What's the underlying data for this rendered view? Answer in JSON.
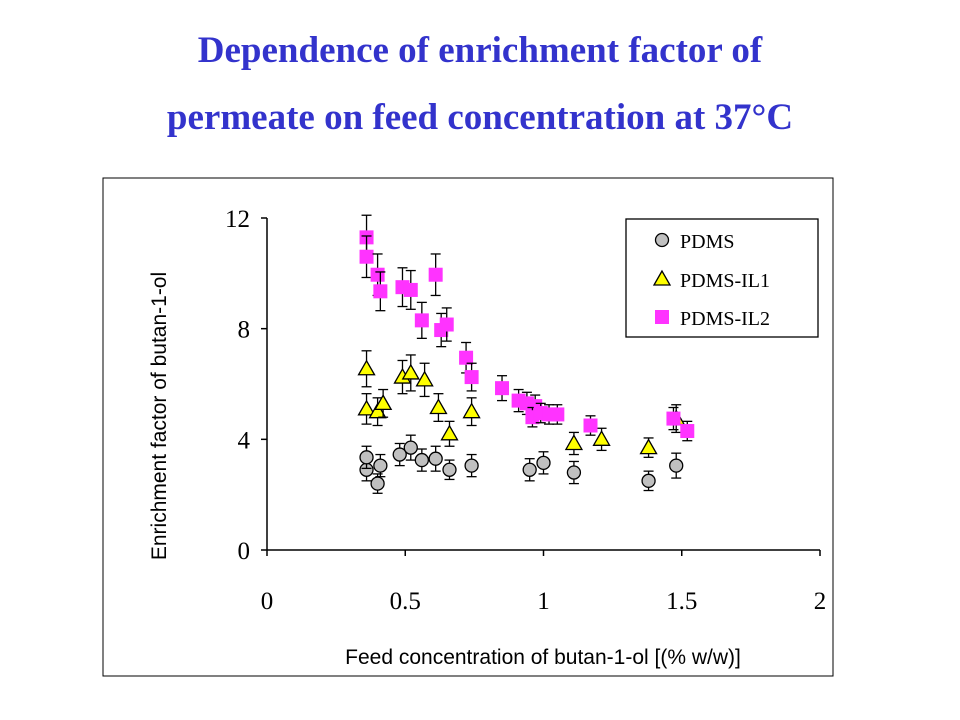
{
  "title_line1": "Dependence of enrichment factor of",
  "title_line2": "permeate on feed concentration at 37°C",
  "chart_data": {
    "type": "scatter",
    "xlabel": "Feed concentration of butan-1-ol [(% w/w)]",
    "ylabel": "Enrichment factor of butan-1-ol",
    "xlim": [
      0,
      2
    ],
    "ylim": [
      0,
      12
    ],
    "xticks": [
      "0",
      "0.5",
      "1",
      "1.5",
      "2"
    ],
    "yticks": [
      "0",
      "4",
      "8",
      "12"
    ],
    "legend_position": "top-right",
    "series": [
      {
        "name": "PDMS",
        "marker": "circle",
        "color": "#c0c0c0",
        "points": [
          {
            "x": 0.36,
            "y": 2.9,
            "err": 0.4
          },
          {
            "x": 0.36,
            "y": 3.35,
            "err": 0.4
          },
          {
            "x": 0.4,
            "y": 2.4,
            "err": 0.35
          },
          {
            "x": 0.41,
            "y": 3.05,
            "err": 0.4
          },
          {
            "x": 0.48,
            "y": 3.45,
            "err": 0.4
          },
          {
            "x": 0.52,
            "y": 3.7,
            "err": 0.45
          },
          {
            "x": 0.56,
            "y": 3.25,
            "err": 0.4
          },
          {
            "x": 0.61,
            "y": 3.3,
            "err": 0.45
          },
          {
            "x": 0.66,
            "y": 2.9,
            "err": 0.35
          },
          {
            "x": 0.74,
            "y": 3.05,
            "err": 0.4
          },
          {
            "x": 0.95,
            "y": 2.9,
            "err": 0.4
          },
          {
            "x": 1.0,
            "y": 3.15,
            "err": 0.4
          },
          {
            "x": 1.11,
            "y": 2.8,
            "err": 0.4
          },
          {
            "x": 1.38,
            "y": 2.5,
            "err": 0.35
          },
          {
            "x": 1.48,
            "y": 3.05,
            "err": 0.45
          }
        ]
      },
      {
        "name": "PDMS-IL1",
        "marker": "triangle",
        "color": "#ffff00",
        "points": [
          {
            "x": 0.36,
            "y": 6.55,
            "err": 0.65
          },
          {
            "x": 0.36,
            "y": 5.1,
            "err": 0.55
          },
          {
            "x": 0.4,
            "y": 5.0,
            "err": 0.5
          },
          {
            "x": 0.42,
            "y": 5.3,
            "err": 0.5
          },
          {
            "x": 0.49,
            "y": 6.25,
            "err": 0.6
          },
          {
            "x": 0.52,
            "y": 6.4,
            "err": 0.65
          },
          {
            "x": 0.57,
            "y": 6.15,
            "err": 0.6
          },
          {
            "x": 0.62,
            "y": 5.15,
            "err": 0.5
          },
          {
            "x": 0.66,
            "y": 4.2,
            "err": 0.45
          },
          {
            "x": 0.74,
            "y": 5.0,
            "err": 0.5
          },
          {
            "x": 1.11,
            "y": 3.85,
            "err": 0.4
          },
          {
            "x": 1.21,
            "y": 4.0,
            "err": 0.4
          },
          {
            "x": 1.38,
            "y": 3.7,
            "err": 0.35
          },
          {
            "x": 1.48,
            "y": 4.75,
            "err": 0.5
          }
        ]
      },
      {
        "name": "PDMS-IL2",
        "marker": "square",
        "color": "#ff33ff",
        "points": [
          {
            "x": 0.36,
            "y": 11.3,
            "err": 0.8
          },
          {
            "x": 0.36,
            "y": 10.6,
            "err": 0.75
          },
          {
            "x": 0.4,
            "y": 9.95,
            "err": 0.75
          },
          {
            "x": 0.41,
            "y": 9.35,
            "err": 0.7
          },
          {
            "x": 0.49,
            "y": 9.5,
            "err": 0.7
          },
          {
            "x": 0.52,
            "y": 9.4,
            "err": 0.7
          },
          {
            "x": 0.56,
            "y": 8.3,
            "err": 0.65
          },
          {
            "x": 0.61,
            "y": 9.95,
            "err": 0.75
          },
          {
            "x": 0.63,
            "y": 7.95,
            "err": 0.6
          },
          {
            "x": 0.65,
            "y": 8.15,
            "err": 0.6
          },
          {
            "x": 0.72,
            "y": 6.95,
            "err": 0.55
          },
          {
            "x": 0.74,
            "y": 6.25,
            "err": 0.5
          },
          {
            "x": 0.85,
            "y": 5.85,
            "err": 0.45
          },
          {
            "x": 0.91,
            "y": 5.4,
            "err": 0.4
          },
          {
            "x": 0.94,
            "y": 5.3,
            "err": 0.4
          },
          {
            "x": 0.97,
            "y": 5.2,
            "err": 0.4
          },
          {
            "x": 0.96,
            "y": 4.8,
            "err": 0.35
          },
          {
            "x": 0.99,
            "y": 4.95,
            "err": 0.35
          },
          {
            "x": 1.02,
            "y": 4.9,
            "err": 0.35
          },
          {
            "x": 1.05,
            "y": 4.9,
            "err": 0.35
          },
          {
            "x": 1.17,
            "y": 4.5,
            "err": 0.35
          },
          {
            "x": 1.47,
            "y": 4.75,
            "err": 0.4
          },
          {
            "x": 1.52,
            "y": 4.3,
            "err": 0.35
          }
        ]
      }
    ]
  }
}
